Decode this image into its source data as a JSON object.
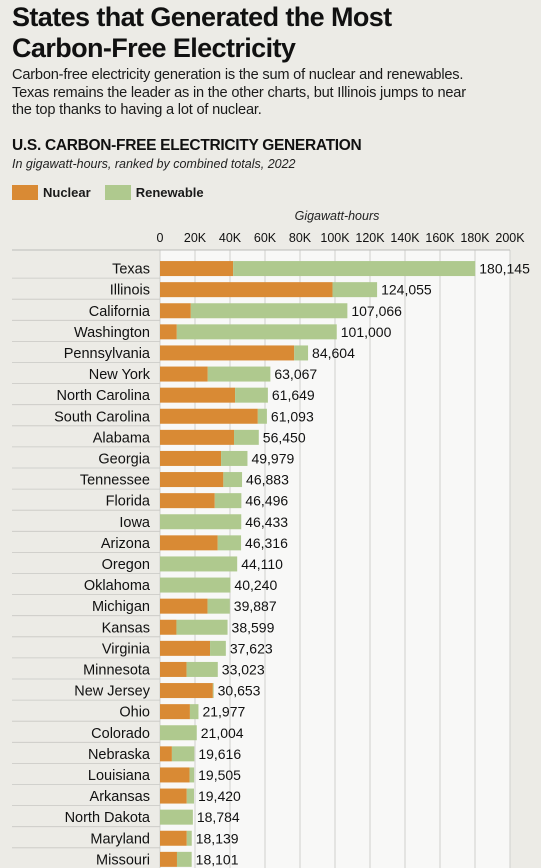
{
  "headline": {
    "line1": "States that Generated the Most",
    "line2": "Carbon-Free Electricity"
  },
  "description": {
    "line1": "Carbon-free electricity generation is the sum of nuclear and renewables.",
    "line2": "Texas remains the leader as in the other charts, but Illinois jumps to near",
    "line3": "the top thanks to having a lot of nuclear."
  },
  "colors": {
    "nuclear": "#d98a34",
    "renewable": "#afc98e",
    "plot_bg": "#f8f8f7",
    "grid": "#d0d0cd"
  },
  "chart_data": {
    "type": "bar",
    "orientation": "horizontal",
    "stacked": true,
    "title": "U.S. CARBON-FREE ELECTRICITY GENERATION",
    "subtitle": "In gigawatt-hours, ranked by combined totals, 2022",
    "xlabel": "Gigawatt-hours",
    "xlim": [
      0,
      200000
    ],
    "x_ticks": [
      0,
      20000,
      40000,
      60000,
      80000,
      100000,
      120000,
      140000,
      160000,
      180000,
      200000
    ],
    "x_tick_labels": [
      "0",
      "20K",
      "40K",
      "60K",
      "80K",
      "100K",
      "120K",
      "140K",
      "160K",
      "180K",
      "200K"
    ],
    "grid": true,
    "legend_position": "top-left",
    "categories": [
      "Texas",
      "Illinois",
      "California",
      "Washington",
      "Pennsylvania",
      "New York",
      "North Carolina",
      "South Carolina",
      "Alabama",
      "Georgia",
      "Tennessee",
      "Florida",
      "Iowa",
      "Arizona",
      "Oregon",
      "Oklahoma",
      "Michigan",
      "Kansas",
      "Virginia",
      "Minnesota",
      "New Jersey",
      "Ohio",
      "Colorado",
      "Nebraska",
      "Louisiana",
      "Arkansas",
      "North Dakota",
      "Maryland",
      "Missouri"
    ],
    "series": [
      {
        "name": "Nuclear",
        "values": [
          41800,
          98600,
          17600,
          9600,
          76700,
          27300,
          42900,
          55900,
          42300,
          34900,
          36200,
          31300,
          0,
          33000,
          0,
          0,
          27200,
          9400,
          28600,
          15200,
          30200,
          17100,
          0,
          6800,
          16900,
          15300,
          0,
          15300,
          9700
        ]
      },
      {
        "name": "Renewable",
        "values": [
          138345,
          25455,
          89466,
          91400,
          7904,
          35767,
          18749,
          5193,
          14150,
          15079,
          10683,
          15196,
          46433,
          13316,
          44110,
          40240,
          12687,
          29199,
          9023,
          17823,
          453,
          4877,
          21004,
          12816,
          2605,
          4120,
          18784,
          2839,
          8401
        ]
      }
    ],
    "totals": [
      180145,
      124055,
      107066,
      101000,
      84604,
      63067,
      61649,
      61093,
      56450,
      49979,
      46883,
      46496,
      46433,
      46316,
      44110,
      40240,
      39887,
      38599,
      37623,
      33023,
      30653,
      21977,
      21004,
      19616,
      19505,
      19420,
      18784,
      18139,
      18101
    ],
    "total_labels": [
      "180,145",
      "124,055",
      "107,066",
      "101,000",
      "84,604",
      "63,067",
      "61,649",
      "61,093",
      "56,450",
      "49,979",
      "46,883",
      "46,496",
      "46,433",
      "46,316",
      "44,110",
      "40,240",
      "39,887",
      "38,599",
      "37,623",
      "33,023",
      "30,653",
      "21,977",
      "21,004",
      "19,616",
      "19,505",
      "19,420",
      "18,784",
      "18,139",
      "18,101"
    ]
  }
}
